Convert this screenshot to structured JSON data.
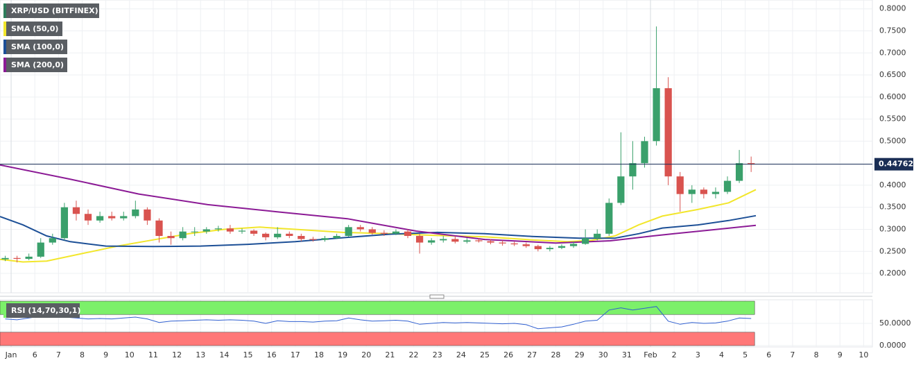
{
  "chart_data": [
    {
      "type": "candlestick",
      "title": "XRP/USD (BITFINEX)",
      "up_color": "#3aa06b",
      "down_color": "#d9534f",
      "grid": true,
      "xlim": [
        -0.47,
        36.37
      ],
      "ylim": [
        0.156,
        0.82
      ],
      "yticks": [
        {
          "value": 0.2,
          "label": "0.2000"
        },
        {
          "value": 0.25,
          "label": "0.2500"
        },
        {
          "value": 0.3,
          "label": "0.3000"
        },
        {
          "value": 0.35,
          "label": "0.3500"
        },
        {
          "value": 0.4,
          "label": "0.4000"
        },
        {
          "value": 0.45,
          "label": "0.4500"
        },
        {
          "value": 0.5,
          "label": "0.5000"
        },
        {
          "value": 0.55,
          "label": "0.5500"
        },
        {
          "value": 0.6,
          "label": "0.6000"
        },
        {
          "value": 0.65,
          "label": "0.6500"
        },
        {
          "value": 0.7,
          "label": "0.7000"
        },
        {
          "value": 0.75,
          "label": "0.7500"
        },
        {
          "value": 0.8,
          "label": "0.8000"
        }
      ],
      "xticks": [
        {
          "value": 0,
          "label": "Jan"
        },
        {
          "value": 1,
          "label": "6"
        },
        {
          "value": 2,
          "label": "7"
        },
        {
          "value": 3,
          "label": "8"
        },
        {
          "value": 4,
          "label": "9"
        },
        {
          "value": 5,
          "label": "10"
        },
        {
          "value": 6,
          "label": "11"
        },
        {
          "value": 7,
          "label": "12"
        },
        {
          "value": 8,
          "label": "13"
        },
        {
          "value": 9,
          "label": "14"
        },
        {
          "value": 10,
          "label": "15"
        },
        {
          "value": 11,
          "label": "16"
        },
        {
          "value": 12,
          "label": "17"
        },
        {
          "value": 13,
          "label": "18"
        },
        {
          "value": 14,
          "label": "19"
        },
        {
          "value": 15,
          "label": "20"
        },
        {
          "value": 16,
          "label": "21"
        },
        {
          "value": 17,
          "label": "22"
        },
        {
          "value": 18,
          "label": "23"
        },
        {
          "value": 19,
          "label": "24"
        },
        {
          "value": 20,
          "label": "25"
        },
        {
          "value": 21,
          "label": "26"
        },
        {
          "value": 22,
          "label": "27"
        },
        {
          "value": 23,
          "label": "28"
        },
        {
          "value": 24,
          "label": "29"
        },
        {
          "value": 25,
          "label": "30"
        },
        {
          "value": 26,
          "label": "31"
        },
        {
          "value": 27,
          "label": "Feb"
        },
        {
          "value": 28,
          "label": "2"
        },
        {
          "value": 29,
          "label": "3"
        },
        {
          "value": 30,
          "label": "4"
        },
        {
          "value": 31,
          "label": "5"
        },
        {
          "value": 32,
          "label": "6"
        },
        {
          "value": 33,
          "label": "7"
        },
        {
          "value": 34,
          "label": "8"
        },
        {
          "value": 35,
          "label": "9"
        },
        {
          "value": 36,
          "label": "10"
        }
      ],
      "x": [
        -0.25,
        0.25,
        0.75,
        1.25,
        1.75,
        2.25,
        2.75,
        3.25,
        3.75,
        4.25,
        4.75,
        5.25,
        5.75,
        6.25,
        6.75,
        7.25,
        7.75,
        8.25,
        8.75,
        9.25,
        9.75,
        10.25,
        10.75,
        11.25,
        11.75,
        12.25,
        12.75,
        13.25,
        13.75,
        14.25,
        14.75,
        15.25,
        15.75,
        16.25,
        16.75,
        17.25,
        17.75,
        18.25,
        18.75,
        19.25,
        19.75,
        20.25,
        20.75,
        21.25,
        21.75,
        22.25,
        22.75,
        23.25,
        23.75,
        24.25,
        24.75,
        25.25,
        25.75,
        26.25,
        26.75,
        27.25,
        27.75,
        28.25,
        28.75,
        29.25,
        29.75,
        30.25,
        30.75,
        31.25
      ],
      "open": [
        0.232,
        0.235,
        0.233,
        0.238,
        0.27,
        0.28,
        0.35,
        0.335,
        0.32,
        0.33,
        0.325,
        0.33,
        0.345,
        0.32,
        0.285,
        0.28,
        0.294,
        0.295,
        0.3,
        0.302,
        0.295,
        0.297,
        0.29,
        0.282,
        0.29,
        0.285,
        0.278,
        0.276,
        0.28,
        0.285,
        0.305,
        0.3,
        0.292,
        0.29,
        0.295,
        0.285,
        0.27,
        0.275,
        0.278,
        0.272,
        0.275,
        0.273,
        0.27,
        0.268,
        0.266,
        0.262,
        0.255,
        0.258,
        0.262,
        0.267,
        0.28,
        0.29,
        0.36,
        0.42,
        0.45,
        0.5,
        0.62,
        0.42,
        0.38,
        0.39,
        0.38,
        0.385,
        0.41,
        0.45
      ],
      "high": [
        0.24,
        0.24,
        0.245,
        0.28,
        0.29,
        0.36,
        0.365,
        0.345,
        0.34,
        0.34,
        0.34,
        0.365,
        0.35,
        0.325,
        0.295,
        0.305,
        0.305,
        0.305,
        0.308,
        0.31,
        0.302,
        0.3,
        0.293,
        0.305,
        0.295,
        0.29,
        0.283,
        0.285,
        0.29,
        0.31,
        0.31,
        0.305,
        0.298,
        0.3,
        0.3,
        0.29,
        0.28,
        0.285,
        0.285,
        0.28,
        0.28,
        0.278,
        0.275,
        0.272,
        0.27,
        0.265,
        0.262,
        0.266,
        0.272,
        0.3,
        0.3,
        0.37,
        0.52,
        0.5,
        0.51,
        0.76,
        0.645,
        0.43,
        0.4,
        0.395,
        0.395,
        0.42,
        0.48,
        0.465
      ],
      "low": [
        0.228,
        0.225,
        0.23,
        0.235,
        0.265,
        0.275,
        0.32,
        0.31,
        0.315,
        0.32,
        0.32,
        0.325,
        0.31,
        0.27,
        0.265,
        0.275,
        0.285,
        0.29,
        0.295,
        0.29,
        0.29,
        0.285,
        0.275,
        0.278,
        0.28,
        0.273,
        0.272,
        0.272,
        0.278,
        0.283,
        0.295,
        0.288,
        0.285,
        0.287,
        0.28,
        0.245,
        0.265,
        0.27,
        0.268,
        0.268,
        0.27,
        0.266,
        0.263,
        0.262,
        0.258,
        0.25,
        0.25,
        0.255,
        0.258,
        0.265,
        0.275,
        0.285,
        0.355,
        0.39,
        0.44,
        0.49,
        0.4,
        0.34,
        0.36,
        0.37,
        0.37,
        0.38,
        0.405,
        0.43
      ],
      "close": [
        0.235,
        0.233,
        0.238,
        0.27,
        0.28,
        0.35,
        0.335,
        0.32,
        0.33,
        0.325,
        0.33,
        0.345,
        0.32,
        0.285,
        0.28,
        0.295,
        0.295,
        0.3,
        0.302,
        0.295,
        0.297,
        0.29,
        0.282,
        0.29,
        0.285,
        0.278,
        0.276,
        0.28,
        0.285,
        0.305,
        0.3,
        0.292,
        0.29,
        0.295,
        0.285,
        0.27,
        0.275,
        0.278,
        0.272,
        0.275,
        0.273,
        0.27,
        0.268,
        0.266,
        0.262,
        0.255,
        0.258,
        0.262,
        0.267,
        0.28,
        0.29,
        0.36,
        0.42,
        0.45,
        0.5,
        0.62,
        0.42,
        0.38,
        0.39,
        0.38,
        0.385,
        0.41,
        0.45,
        0.44762
      ],
      "series": [
        {
          "name": "SMA (50,0)",
          "color": "#f2e62b",
          "x": [
            -0.47,
            0.5,
            1.5,
            3,
            4.5,
            6,
            7.5,
            9,
            10.5,
            12,
            14,
            16,
            18,
            20,
            22,
            23.5,
            24.5,
            25.5,
            26.5,
            27.5,
            29,
            30.3,
            31.45
          ],
          "values": [
            0.232,
            0.226,
            0.228,
            0.245,
            0.262,
            0.276,
            0.29,
            0.3,
            0.305,
            0.3,
            0.293,
            0.29,
            0.286,
            0.283,
            0.276,
            0.272,
            0.275,
            0.285,
            0.31,
            0.33,
            0.345,
            0.36,
            0.39
          ]
        },
        {
          "name": "SMA (100,0)",
          "color": "#1c4f96",
          "x": [
            -0.47,
            0.5,
            1.5,
            2.5,
            4,
            6,
            8,
            10,
            12,
            14,
            16,
            18,
            20,
            22,
            24,
            25.5,
            26.5,
            27.5,
            29,
            30.3,
            31.45
          ],
          "values": [
            0.329,
            0.31,
            0.285,
            0.272,
            0.262,
            0.261,
            0.262,
            0.266,
            0.272,
            0.281,
            0.289,
            0.293,
            0.29,
            0.284,
            0.28,
            0.28,
            0.29,
            0.303,
            0.31,
            0.32,
            0.331
          ]
        },
        {
          "name": "SMA (200,0)",
          "color": "#8b1a95",
          "x": [
            -0.47,
            2.46,
            5.39,
            8.3,
            11.2,
            14.2,
            17.1,
            20,
            23,
            25.3,
            27.1,
            28,
            31.45
          ],
          "values": [
            0.446,
            0.414,
            0.38,
            0.356,
            0.34,
            0.324,
            0.296,
            0.277,
            0.269,
            0.274,
            0.285,
            0.29,
            0.309
          ]
        }
      ]
    },
    {
      "type": "line",
      "title": "RSI (14,70,30,1)",
      "color": "#2f5fd0",
      "upper": 70,
      "lower": 30,
      "upper_color": "#7cf06a",
      "lower_color": "#ff7878",
      "xlim": [
        -0.47,
        36.37
      ],
      "ylim": [
        0,
        100
      ],
      "yticks": [
        {
          "value": 50,
          "label": "50.0000"
        },
        {
          "value": 0,
          "label": "0.0000"
        }
      ],
      "x": [
        -0.25,
        0.25,
        0.75,
        1.25,
        1.75,
        2.25,
        2.75,
        3.25,
        3.75,
        4.25,
        4.75,
        5.25,
        5.75,
        6.25,
        6.75,
        7.25,
        7.75,
        8.25,
        8.75,
        9.25,
        9.75,
        10.25,
        10.75,
        11.25,
        11.75,
        12.25,
        12.75,
        13.25,
        13.75,
        14.25,
        14.75,
        15.25,
        15.75,
        16.25,
        16.75,
        17.25,
        17.75,
        18.25,
        18.75,
        19.25,
        19.75,
        20.25,
        20.75,
        21.25,
        21.75,
        22.25,
        22.75,
        23.25,
        23.75,
        24.25,
        24.75,
        25.25,
        25.75,
        26.25,
        26.75,
        27.25,
        27.75,
        28.25,
        28.75,
        29.25,
        29.75,
        30.25,
        30.75,
        31.25
      ],
      "values": [
        60,
        58,
        62,
        66,
        65,
        64,
        62,
        60,
        61,
        60,
        62,
        64,
        60,
        52,
        55,
        56,
        57,
        58,
        57,
        58,
        57,
        55,
        50,
        56,
        54,
        54,
        53,
        55,
        56,
        62,
        58,
        55,
        56,
        57,
        55,
        48,
        50,
        52,
        51,
        52,
        51,
        50,
        49,
        50,
        47,
        38,
        40,
        42,
        48,
        55,
        57,
        80,
        85,
        80,
        84,
        88,
        55,
        48,
        52,
        50,
        51,
        55,
        62,
        61
      ]
    }
  ]
}
